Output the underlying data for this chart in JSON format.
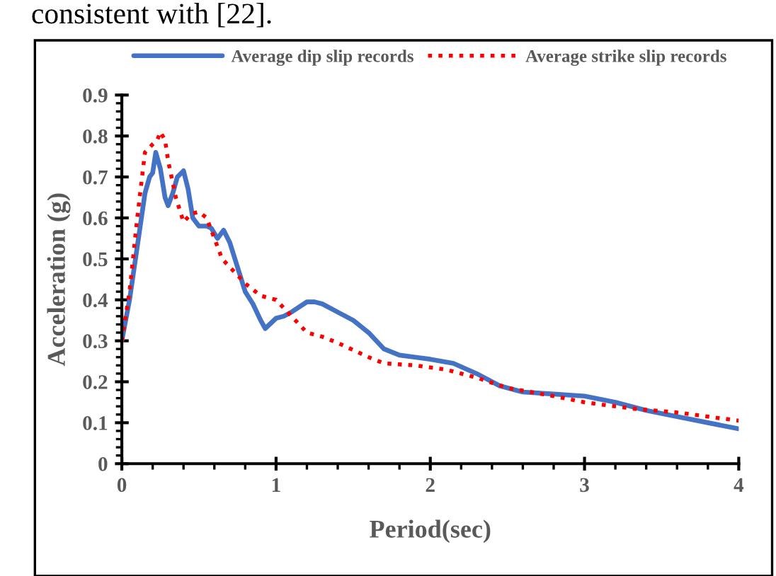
{
  "chart_data": {
    "type": "line",
    "xlabel": "Period(sec)",
    "ylabel": "Acceleration (g)",
    "annotations": [
      "consistent with [22]."
    ],
    "xlim": [
      0,
      4
    ],
    "xticks": [
      0,
      1,
      2,
      3,
      4
    ],
    "ylim": [
      0,
      0.9
    ],
    "yticks": [
      0,
      0.1,
      0.2,
      0.3,
      0.4,
      0.5,
      0.6,
      0.7,
      0.8,
      0.9
    ],
    "grid": false,
    "legend": "top",
    "marker": "none",
    "series": [
      {
        "name": "Average dip slip records",
        "color": "#4472c4",
        "line_style": "solid",
        "x": [
          0,
          0.05,
          0.1,
          0.15,
          0.18,
          0.2,
          0.22,
          0.25,
          0.28,
          0.3,
          0.33,
          0.36,
          0.4,
          0.43,
          0.46,
          0.5,
          0.55,
          0.58,
          0.62,
          0.66,
          0.7,
          0.75,
          0.8,
          0.85,
          0.9,
          0.93,
          1.0,
          1.05,
          1.1,
          1.2,
          1.25,
          1.3,
          1.4,
          1.5,
          1.6,
          1.7,
          1.8,
          1.9,
          2.0,
          2.15,
          2.3,
          2.45,
          2.6,
          2.8,
          3.0,
          3.2,
          3.4,
          3.6,
          3.8,
          4.0
        ],
        "values": [
          0.3,
          0.4,
          0.53,
          0.66,
          0.7,
          0.71,
          0.76,
          0.72,
          0.65,
          0.63,
          0.66,
          0.7,
          0.715,
          0.67,
          0.6,
          0.58,
          0.58,
          0.575,
          0.55,
          0.57,
          0.54,
          0.48,
          0.42,
          0.39,
          0.35,
          0.33,
          0.355,
          0.36,
          0.37,
          0.395,
          0.395,
          0.39,
          0.37,
          0.35,
          0.32,
          0.28,
          0.265,
          0.26,
          0.255,
          0.245,
          0.22,
          0.19,
          0.175,
          0.17,
          0.165,
          0.15,
          0.13,
          0.115,
          0.1,
          0.085
        ]
      },
      {
        "name": "Average strike slip records",
        "color": "#ff0000",
        "line_style": "dotted",
        "x": [
          0,
          0.05,
          0.1,
          0.15,
          0.2,
          0.23,
          0.25,
          0.28,
          0.3,
          0.35,
          0.4,
          0.45,
          0.5,
          0.55,
          0.6,
          0.65,
          0.7,
          0.8,
          0.9,
          1.0,
          1.05,
          1.1,
          1.2,
          1.3,
          1.4,
          1.6,
          1.7,
          1.9,
          2.1,
          2.3,
          2.5,
          2.8,
          3.0,
          3.3,
          3.6,
          4.0
        ],
        "values": [
          0.3,
          0.42,
          0.6,
          0.76,
          0.78,
          0.79,
          0.81,
          0.79,
          0.74,
          0.65,
          0.59,
          0.61,
          0.615,
          0.6,
          0.55,
          0.5,
          0.48,
          0.44,
          0.41,
          0.4,
          0.38,
          0.36,
          0.32,
          0.31,
          0.295,
          0.26,
          0.245,
          0.24,
          0.23,
          0.21,
          0.185,
          0.165,
          0.15,
          0.135,
          0.125,
          0.105
        ]
      }
    ]
  }
}
